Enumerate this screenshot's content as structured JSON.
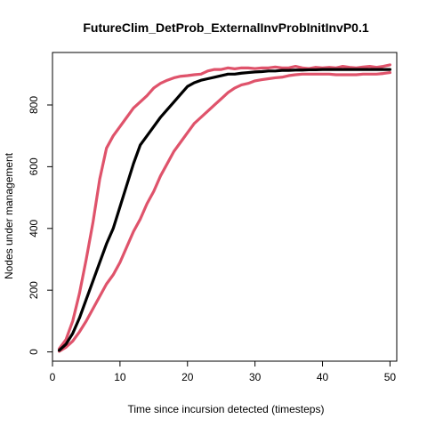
{
  "chart_data": {
    "type": "line",
    "title": "FutureClim_DetProb_ExternalInvProbInitInvP0.1",
    "xlabel": "Time since incursion detected (timesteps)",
    "ylabel": "Nodes under management",
    "xlim": [
      0,
      51
    ],
    "ylim": [
      -30,
      970
    ],
    "xticks": [
      0,
      10,
      20,
      30,
      40,
      50
    ],
    "yticks": [
      0,
      200,
      400,
      600,
      800
    ],
    "grid": false,
    "legend": "none",
    "series": [
      {
        "color": "#000000",
        "x": [
          1,
          2,
          3,
          4,
          5,
          6,
          7,
          8,
          9,
          10,
          11,
          12,
          13,
          14,
          15,
          16,
          17,
          18,
          19,
          20,
          21,
          22,
          23,
          24,
          25,
          26,
          27,
          28,
          29,
          30,
          31,
          32,
          33,
          34,
          35,
          36,
          37,
          38,
          39,
          40,
          41,
          42,
          43,
          44,
          45,
          46,
          47,
          48,
          49,
          50
        ],
        "values": [
          5,
          25,
          60,
          110,
          170,
          230,
          290,
          350,
          400,
          470,
          540,
          610,
          670,
          700,
          730,
          760,
          785,
          810,
          835,
          860,
          872,
          880,
          885,
          890,
          895,
          900,
          900,
          903,
          905,
          907,
          908,
          910,
          910,
          912,
          912,
          913,
          913,
          914,
          914,
          915,
          915,
          915,
          915,
          915,
          915,
          915,
          915,
          915,
          915,
          915
        ]
      },
      {
        "color": "#df536b",
        "x": [
          1,
          2,
          3,
          4,
          5,
          6,
          7,
          8,
          9,
          10,
          11,
          12,
          13,
          14,
          15,
          16,
          17,
          18,
          19,
          20,
          21,
          22,
          23,
          24,
          25,
          26,
          27,
          28,
          29,
          30,
          31,
          32,
          33,
          34,
          35,
          36,
          37,
          38,
          39,
          40,
          41,
          42,
          43,
          44,
          45,
          46,
          47,
          48,
          49,
          50
        ],
        "values": [
          10,
          40,
          100,
          190,
          300,
          420,
          560,
          660,
          700,
          730,
          760,
          790,
          810,
          830,
          855,
          870,
          880,
          888,
          893,
          895,
          898,
          900,
          910,
          915,
          915,
          920,
          917,
          920,
          920,
          918,
          920,
          920,
          923,
          920,
          920,
          925,
          920,
          918,
          922,
          920,
          922,
          920,
          925,
          922,
          920,
          923,
          925,
          922,
          925,
          930
        ]
      },
      {
        "color": "#df536b",
        "x": [
          1,
          2,
          3,
          4,
          5,
          6,
          7,
          8,
          9,
          10,
          11,
          12,
          13,
          14,
          15,
          16,
          17,
          18,
          19,
          20,
          21,
          22,
          23,
          24,
          25,
          26,
          27,
          28,
          29,
          30,
          31,
          32,
          33,
          34,
          35,
          36,
          37,
          38,
          39,
          40,
          41,
          42,
          43,
          44,
          45,
          46,
          47,
          48,
          49,
          50
        ],
        "values": [
          2,
          15,
          35,
          65,
          100,
          140,
          180,
          220,
          250,
          290,
          340,
          390,
          430,
          480,
          520,
          570,
          610,
          650,
          680,
          710,
          740,
          760,
          780,
          800,
          820,
          840,
          855,
          865,
          870,
          878,
          882,
          885,
          888,
          890,
          895,
          898,
          900,
          900,
          900,
          900,
          900,
          898,
          898,
          898,
          898,
          900,
          900,
          900,
          902,
          905
        ]
      }
    ]
  }
}
